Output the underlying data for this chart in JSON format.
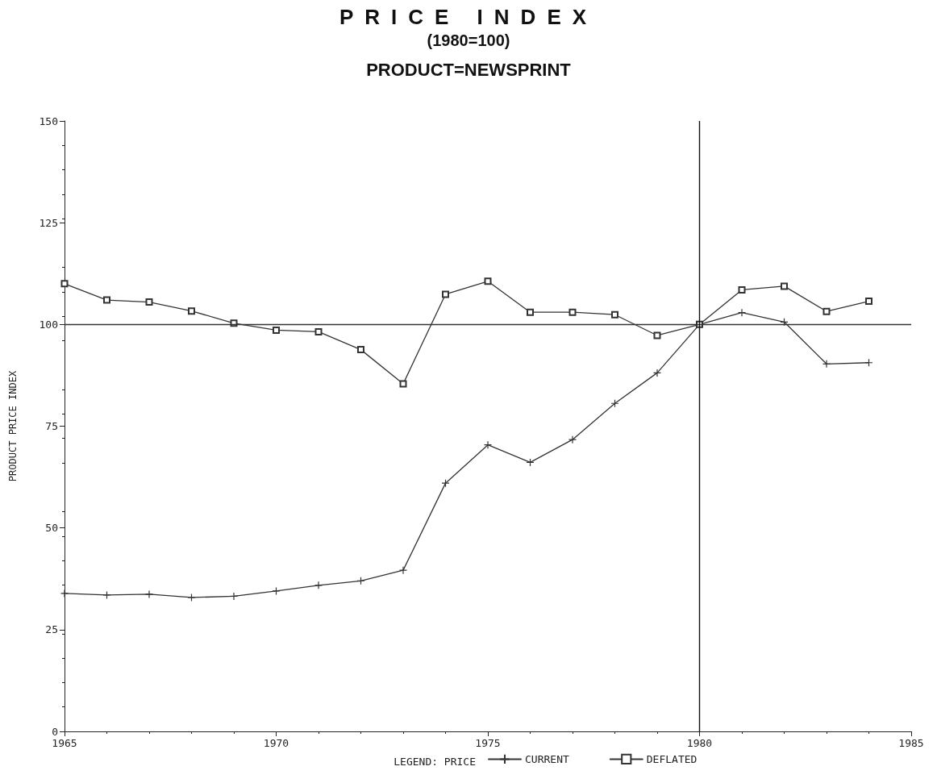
{
  "chart_data": {
    "type": "line",
    "title": "PRICE INDEX",
    "subtitle": "(1980=100)",
    "annotations": [
      "PRODUCT=NEWSPRINT"
    ],
    "ylabel": "PRODUCT PRICE INDEX",
    "legend_title": "LEGEND: PRICE",
    "x": [
      1965,
      1966,
      1967,
      1968,
      1969,
      1970,
      1971,
      1972,
      1973,
      1974,
      1975,
      1976,
      1977,
      1978,
      1979,
      1980,
      1981,
      1982,
      1983,
      1984
    ],
    "series": [
      {
        "name": "CURRENT",
        "color": "#333333",
        "marker": "cross",
        "values": [
          33.9,
          33.5,
          33.7,
          32.9,
          33.2,
          34.5,
          35.9,
          37,
          39.6,
          61,
          70.4,
          66.1,
          71.7,
          80.6,
          88.1,
          100,
          102.9,
          100.6,
          90.3,
          90.6
        ]
      },
      {
        "name": "DEFLATED",
        "color": "#333333",
        "marker": "square",
        "values": [
          110,
          106,
          105.5,
          103.3,
          100.3,
          98.6,
          98.2,
          93.8,
          85.4,
          107.4,
          110.6,
          103,
          103,
          102.4,
          97.3,
          100,
          108.5,
          109.4,
          103.2,
          105.7
        ]
      }
    ],
    "xlim": [
      1965,
      1985
    ],
    "xticks": [
      1965,
      1970,
      1975,
      1980,
      1985
    ],
    "ylim": [
      0,
      150
    ],
    "yticks": [
      0,
      25,
      50,
      75,
      100,
      125,
      150
    ],
    "ref_lines": [
      {
        "axis": "y",
        "value": 100,
        "color": "#333333"
      },
      {
        "axis": "x",
        "value": 1980,
        "color": "#111111"
      }
    ],
    "grid": false,
    "legend": "bottom",
    "line_style": "solid"
  }
}
